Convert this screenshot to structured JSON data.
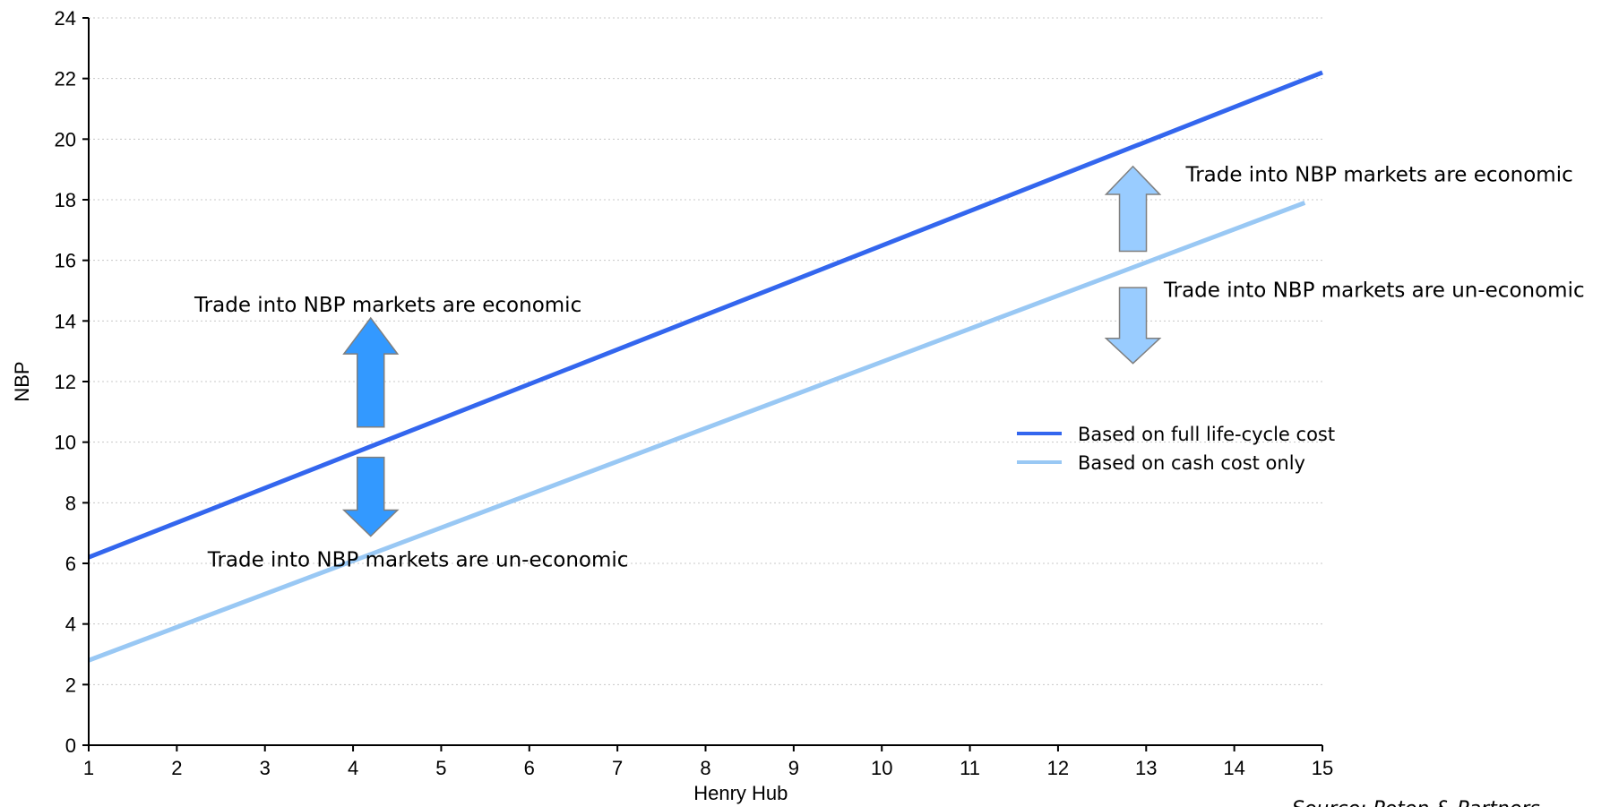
{
  "chart_data": {
    "type": "line",
    "title": "",
    "xlabel": "Henry Hub",
    "ylabel": "NBP",
    "xlim": [
      1,
      15
    ],
    "ylim": [
      0,
      24
    ],
    "x_ticks": [
      1,
      2,
      3,
      4,
      5,
      6,
      7,
      8,
      9,
      10,
      11,
      12,
      13,
      14,
      15
    ],
    "y_ticks": [
      0,
      2,
      4,
      6,
      8,
      10,
      12,
      14,
      16,
      18,
      20,
      22,
      24
    ],
    "grid": "horizontal-dotted",
    "legend_position": "center-right",
    "series": [
      {
        "name": "Based on full life-cycle cost",
        "color": "#3366ee",
        "x": [
          1,
          15
        ],
        "y": [
          6.2,
          22.2
        ]
      },
      {
        "name": "Based on cash cost only",
        "color": "#99c8f4",
        "x": [
          1,
          14.8
        ],
        "y": [
          2.8,
          17.9
        ]
      }
    ],
    "annotations": [
      {
        "text": "Trade into NBP markets are economic",
        "x": 2.2,
        "y": 14.3
      },
      {
        "text": "Trade into NBP markets are un-economic",
        "x": 2.35,
        "y": 5.9
      },
      {
        "text": "Trade into NBP markets are economic",
        "x": 13.45,
        "y": 18.6
      },
      {
        "text": "Trade into NBP markets are un-economic",
        "x": 13.2,
        "y": 14.8
      }
    ],
    "arrows": [
      {
        "direction": "up",
        "x": 4.2,
        "y_from": 10.5,
        "y_to": 14.1,
        "color": "#3399ff"
      },
      {
        "direction": "down",
        "x": 4.2,
        "y_from": 9.5,
        "y_to": 6.9,
        "color": "#3399ff"
      },
      {
        "direction": "up",
        "x": 12.85,
        "y_from": 16.3,
        "y_to": 19.1,
        "color": "#99ccff"
      },
      {
        "direction": "down",
        "x": 12.85,
        "y_from": 15.1,
        "y_to": 12.6,
        "color": "#99ccff"
      }
    ],
    "source": "Source: Poten & Partners"
  }
}
